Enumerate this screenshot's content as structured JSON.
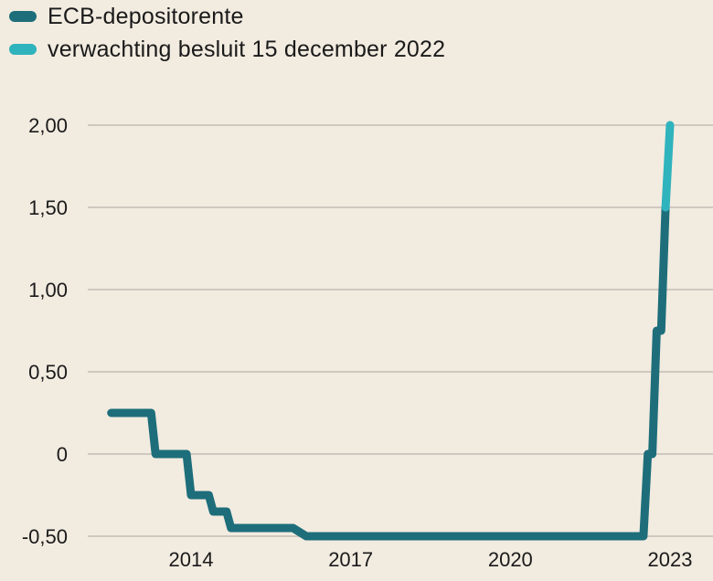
{
  "chart_data": {
    "type": "line",
    "title": "",
    "xlabel": "",
    "ylabel": "",
    "x_ticks": [
      "2014",
      "2017",
      "2020",
      "2023"
    ],
    "y_ticks": [
      "2,00",
      "1,50",
      "1,00",
      "0,50",
      "0",
      "-0,50"
    ],
    "ylim": [
      -0.5,
      2.0
    ],
    "grid": true,
    "legend_position": "top-left",
    "series": [
      {
        "name": "ECB-depositorente",
        "color": "#1d6e7a",
        "points": [
          [
            "2012-07",
            0.25
          ],
          [
            "2013-01",
            0.25
          ],
          [
            "2013-04",
            0.25
          ],
          [
            "2013-05",
            0.0
          ],
          [
            "2013-12",
            0.0
          ],
          [
            "2014-01",
            -0.25
          ],
          [
            "2014-05",
            -0.25
          ],
          [
            "2014-06",
            -0.35
          ],
          [
            "2014-09",
            -0.35
          ],
          [
            "2014-10",
            -0.45
          ],
          [
            "2015-12",
            -0.45
          ],
          [
            "2016-03",
            -0.5
          ],
          [
            "2019-09",
            -0.5
          ],
          [
            "2022-07",
            -0.5
          ],
          [
            "2022-08",
            0.0
          ],
          [
            "2022-09",
            0.0
          ],
          [
            "2022-10",
            0.75
          ],
          [
            "2022-11",
            0.75
          ],
          [
            "2022-12",
            1.5
          ]
        ]
      },
      {
        "name": "verwachting besluit 15 december 2022",
        "color": "#2fb3bd",
        "points": [
          [
            "2022-12",
            1.5
          ],
          [
            "2023-01",
            2.0
          ]
        ]
      }
    ]
  }
}
